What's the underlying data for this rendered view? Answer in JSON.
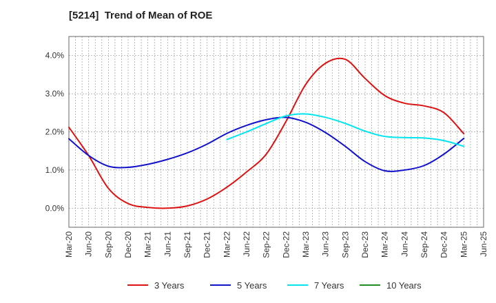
{
  "chart_data": {
    "type": "line",
    "title": "[5214]  Trend of Mean of ROE",
    "xlabel": "",
    "ylabel": "",
    "ylim": [
      -0.5,
      4.5
    ],
    "yticks": [
      0.0,
      1.0,
      2.0,
      3.0,
      4.0
    ],
    "ytick_labels": [
      "0.0%",
      "1.0%",
      "2.0%",
      "3.0%",
      "4.0%"
    ],
    "xtick_labels": [
      "Mar-20",
      "Jun-20",
      "Sep-20",
      "Dec-20",
      "Mar-21",
      "Jun-21",
      "Sep-21",
      "Dec-21",
      "Mar-22",
      "Jun-22",
      "Sep-22",
      "Dec-22",
      "Mar-23",
      "Jun-23",
      "Sep-23",
      "Dec-23",
      "Mar-24",
      "Jun-24",
      "Sep-24",
      "Dec-24",
      "Mar-25",
      "Jun-25"
    ],
    "grid": true,
    "legend_position": "bottom",
    "series": [
      {
        "name": "3 Years",
        "color": "#dd1111",
        "start_index": 0,
        "values": [
          2.12,
          1.38,
          0.52,
          0.12,
          0.02,
          0.0,
          0.06,
          0.24,
          0.55,
          0.95,
          1.42,
          2.28,
          3.25,
          3.8,
          3.9,
          3.4,
          2.95,
          2.75,
          2.68,
          2.5,
          1.95
        ]
      },
      {
        "name": "5 Years",
        "color": "#1111cc",
        "start_index": 0,
        "values": [
          1.82,
          1.38,
          1.1,
          1.07,
          1.15,
          1.28,
          1.45,
          1.68,
          1.96,
          2.17,
          2.32,
          2.38,
          2.25,
          1.98,
          1.62,
          1.22,
          0.98,
          1.0,
          1.12,
          1.42,
          1.83
        ]
      },
      {
        "name": "7 Years",
        "color": "#00e5ee",
        "start_index": 8,
        "values": [
          1.8,
          2.0,
          2.22,
          2.42,
          2.47,
          2.38,
          2.22,
          2.02,
          1.88,
          1.85,
          1.84,
          1.77,
          1.62
        ]
      },
      {
        "name": "10 Years",
        "color": "#228b22",
        "start_index": 0,
        "values": []
      }
    ]
  }
}
